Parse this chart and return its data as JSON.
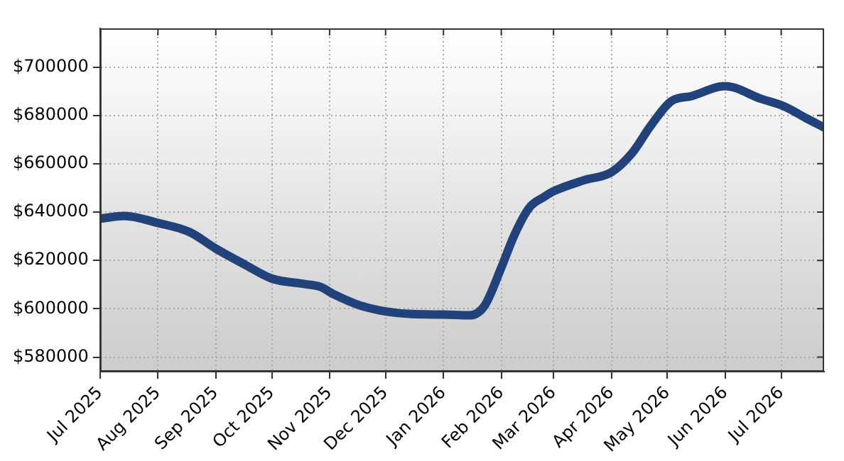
{
  "chart_data": {
    "type": "line",
    "x": [
      "2025-07-01",
      "2025-07-14",
      "2025-08-01",
      "2025-08-18",
      "2025-09-01",
      "2025-09-17",
      "2025-10-01",
      "2025-10-19",
      "2025-10-27",
      "2025-11-03",
      "2025-11-18",
      "2025-12-01",
      "2025-12-15",
      "2026-01-01",
      "2026-01-15",
      "2026-01-23",
      "2026-02-01",
      "2026-02-08",
      "2026-02-16",
      "2026-02-24",
      "2026-03-01",
      "2026-03-17",
      "2026-04-01",
      "2026-04-12",
      "2026-04-22",
      "2026-05-03",
      "2026-05-14",
      "2026-06-01",
      "2026-06-20",
      "2026-07-03",
      "2026-07-14",
      "2026-07-24"
    ],
    "series": [
      {
        "color": "#21427a",
        "values": [
          637300,
          638400,
          635500,
          631700,
          624900,
          618100,
          612500,
          610200,
          609100,
          606100,
          601200,
          598900,
          597800,
          597600,
          597300,
          601200,
          617000,
          630500,
          641800,
          646300,
          648600,
          653100,
          656500,
          664300,
          675600,
          685800,
          688000,
          692100,
          686900,
          683600,
          679000,
          675000
        ]
      }
    ],
    "xlim": [
      "2025-07-01",
      "2026-07-24"
    ],
    "xticks": [
      {
        "value": "2025-07",
        "label": "Jul 2025"
      },
      {
        "value": "2025-08",
        "label": "Aug 2025"
      },
      {
        "value": "2025-09",
        "label": "Sep 2025"
      },
      {
        "value": "2025-10",
        "label": "Oct 2025"
      },
      {
        "value": "2025-11",
        "label": "Nov 2025"
      },
      {
        "value": "2025-12",
        "label": "Dec 2025"
      },
      {
        "value": "2026-01",
        "label": "Jan 2026"
      },
      {
        "value": "2026-02",
        "label": "Feb 2026"
      },
      {
        "value": "2026-03",
        "label": "Mar 2026"
      },
      {
        "value": "2026-04",
        "label": "Apr 2026"
      },
      {
        "value": "2026-05",
        "label": "May 2026"
      },
      {
        "value": "2026-06",
        "label": "Jun 2026"
      },
      {
        "value": "2026-07",
        "label": "Jul 2026"
      }
    ],
    "ylim": [
      574000,
      716000
    ],
    "yticks": [
      {
        "value": 580000,
        "label": "$580000"
      },
      {
        "value": 600000,
        "label": "$600000"
      },
      {
        "value": 620000,
        "label": "$620000"
      },
      {
        "value": 640000,
        "label": "$640000"
      },
      {
        "value": 660000,
        "label": "$660000"
      },
      {
        "value": 680000,
        "label": "$680000"
      },
      {
        "value": 700000,
        "label": "$700000"
      }
    ],
    "grid": true,
    "legend": false,
    "marker": "none",
    "line_style": "solid"
  }
}
